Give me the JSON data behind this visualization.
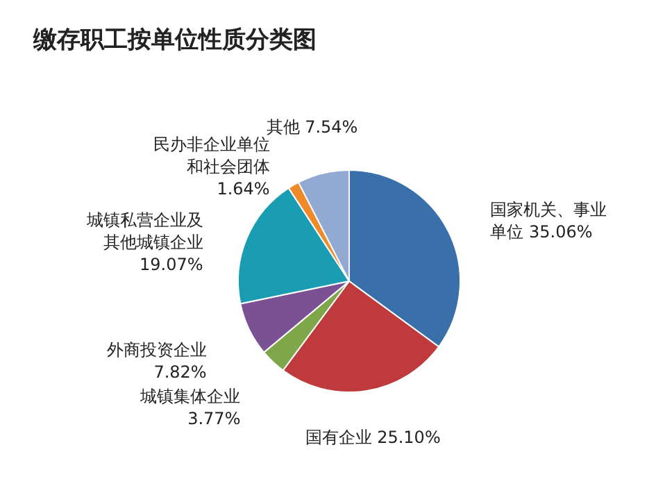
{
  "chart_data": {
    "type": "pie",
    "title": "缴存职工按单位性质分类图",
    "categories": [
      "国家机关、事业单位",
      "国有企业",
      "城镇集体企业",
      "外商投资企业",
      "城镇私营企业及其他城镇企业",
      "民办非企业单位和社会团体",
      "其他"
    ],
    "values": [
      35.06,
      25.1,
      3.77,
      7.82,
      19.07,
      1.64,
      7.54
    ],
    "value_labels": [
      "35.06%",
      "25.10%",
      "3.77%",
      "7.82%",
      "19.07%",
      "1.64%",
      "7.54%"
    ],
    "colors": [
      "#3a70aa",
      "#bf3a3c",
      "#7fa74a",
      "#7a5294",
      "#1a9cb3",
      "#ef8a2a",
      "#92aad2"
    ],
    "legend": false
  }
}
